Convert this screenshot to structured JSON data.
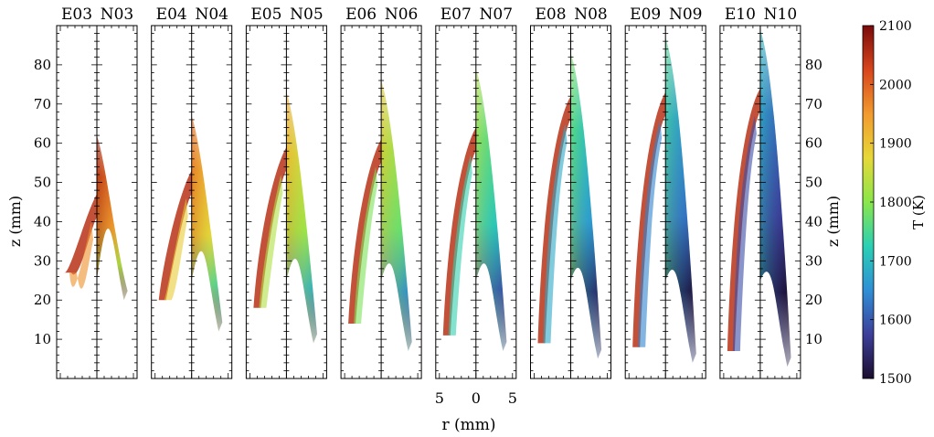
{
  "chart_data": {
    "type": "heatmap",
    "title": "",
    "xlabel": "r (mm)",
    "ylabel": "z (mm)",
    "ylabel_right": "z (mm)",
    "ylim": [
      0,
      90
    ],
    "yticks": [
      10,
      20,
      30,
      40,
      50,
      60,
      70,
      80
    ],
    "xticks": [
      5,
      0,
      5
    ],
    "xticks_panel": "E07 N07",
    "colorbar": {
      "label": "T (K)",
      "range": [
        1500,
        2100
      ],
      "ticks": [
        1500,
        1600,
        1700,
        1800,
        1900,
        2000,
        2100
      ],
      "colors": [
        "#1a0d2e",
        "#3d3f9a",
        "#2f8fd6",
        "#2ad0b4",
        "#8ae64a",
        "#e6d838",
        "#f29a2e",
        "#d7451c",
        "#7a0a0a"
      ]
    },
    "panels": [
      {
        "left": "E03",
        "right": "N03",
        "flame_top_mm": 62,
        "flame_base_mm": 20,
        "e_min_z": 27,
        "e_max_z": 47,
        "n_temp": 1960
      },
      {
        "left": "E04",
        "right": "N04",
        "flame_top_mm": 67,
        "flame_base_mm": 12,
        "e_min_z": 20,
        "e_max_z": 53,
        "n_temp": 1890
      },
      {
        "left": "E05",
        "right": "N05",
        "flame_top_mm": 73,
        "flame_base_mm": 9,
        "e_min_z": 18,
        "e_max_z": 59,
        "n_temp": 1830
      },
      {
        "left": "E06",
        "right": "N06",
        "flame_top_mm": 76,
        "flame_base_mm": 7,
        "e_min_z": 14,
        "e_max_z": 61,
        "n_temp": 1790
      },
      {
        "left": "E07",
        "right": "N07",
        "flame_top_mm": 79,
        "flame_base_mm": 7,
        "e_min_z": 11,
        "e_max_z": 64,
        "n_temp": 1730
      },
      {
        "left": "E08",
        "right": "N08",
        "flame_top_mm": 83,
        "flame_base_mm": 5,
        "e_min_z": 9,
        "e_max_z": 72,
        "n_temp": 1680
      },
      {
        "left": "E09",
        "right": "N09",
        "flame_top_mm": 87,
        "flame_base_mm": 4,
        "e_min_z": 8,
        "e_max_z": 73,
        "n_temp": 1640
      },
      {
        "left": "E10",
        "right": "N10",
        "flame_top_mm": 89,
        "flame_base_mm": 3,
        "e_min_z": 7,
        "e_max_z": 74,
        "n_temp": 1590
      }
    ]
  }
}
